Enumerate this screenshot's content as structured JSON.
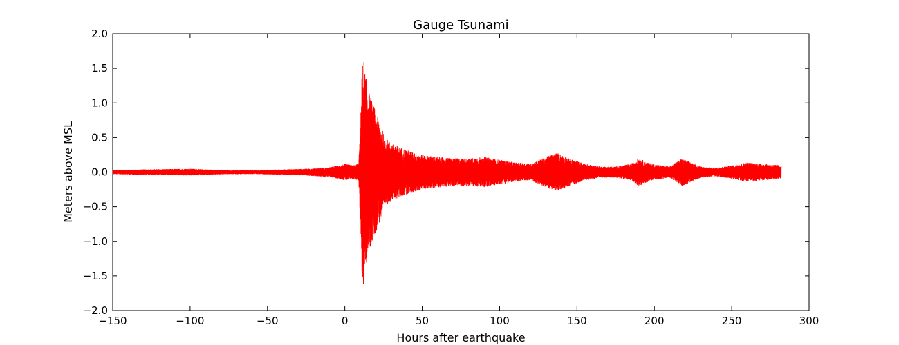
{
  "chart_data": {
    "type": "line",
    "title": "Gauge Tsunami",
    "xlabel": "Hours after earthquake",
    "ylabel": "Meters above MSL",
    "xlim": [
      -150,
      300
    ],
    "ylim": [
      -2.0,
      2.0
    ],
    "xticks": [
      -150,
      -100,
      -50,
      0,
      50,
      100,
      150,
      200,
      250,
      300
    ],
    "xtick_labels": [
      "−150",
      "−100",
      "−50",
      "0",
      "50",
      "100",
      "150",
      "200",
      "250",
      "300"
    ],
    "yticks": [
      -2.0,
      -1.5,
      -1.0,
      -0.5,
      0.0,
      0.5,
      1.0,
      1.5,
      2.0
    ],
    "ytick_labels": [
      "−2.0",
      "−1.5",
      "−1.0",
      "−0.5",
      "0.0",
      "0.5",
      "1.0",
      "1.5",
      "2.0"
    ],
    "grid": false,
    "series": [
      {
        "color": "#ff0000",
        "x_range": [
          -150,
          282
        ],
        "envelope": [
          [
            -150,
            0.03
          ],
          [
            -130,
            0.04
          ],
          [
            -100,
            0.05
          ],
          [
            -90,
            0.04
          ],
          [
            -75,
            0.03
          ],
          [
            -55,
            0.03
          ],
          [
            -40,
            0.04
          ],
          [
            -25,
            0.05
          ],
          [
            -10,
            0.07
          ],
          [
            -3,
            0.1
          ],
          [
            0,
            0.12
          ],
          [
            5,
            0.1
          ],
          [
            9,
            0.12
          ],
          [
            10,
            0.75
          ],
          [
            11,
            1.45
          ],
          [
            12,
            1.7
          ],
          [
            13,
            1.45
          ],
          [
            15,
            1.2
          ],
          [
            18,
            1.0
          ],
          [
            22,
            0.75
          ],
          [
            26,
            0.5
          ],
          [
            30,
            0.42
          ],
          [
            40,
            0.32
          ],
          [
            50,
            0.25
          ],
          [
            60,
            0.22
          ],
          [
            70,
            0.2
          ],
          [
            80,
            0.2
          ],
          [
            90,
            0.22
          ],
          [
            100,
            0.18
          ],
          [
            110,
            0.14
          ],
          [
            120,
            0.12
          ],
          [
            130,
            0.22
          ],
          [
            137,
            0.28
          ],
          [
            145,
            0.2
          ],
          [
            155,
            0.12
          ],
          [
            165,
            0.08
          ],
          [
            175,
            0.08
          ],
          [
            185,
            0.12
          ],
          [
            190,
            0.2
          ],
          [
            198,
            0.12
          ],
          [
            210,
            0.08
          ],
          [
            218,
            0.2
          ],
          [
            222,
            0.16
          ],
          [
            230,
            0.08
          ],
          [
            240,
            0.06
          ],
          [
            250,
            0.1
          ],
          [
            260,
            0.14
          ],
          [
            270,
            0.12
          ],
          [
            282,
            0.1
          ]
        ]
      }
    ]
  }
}
